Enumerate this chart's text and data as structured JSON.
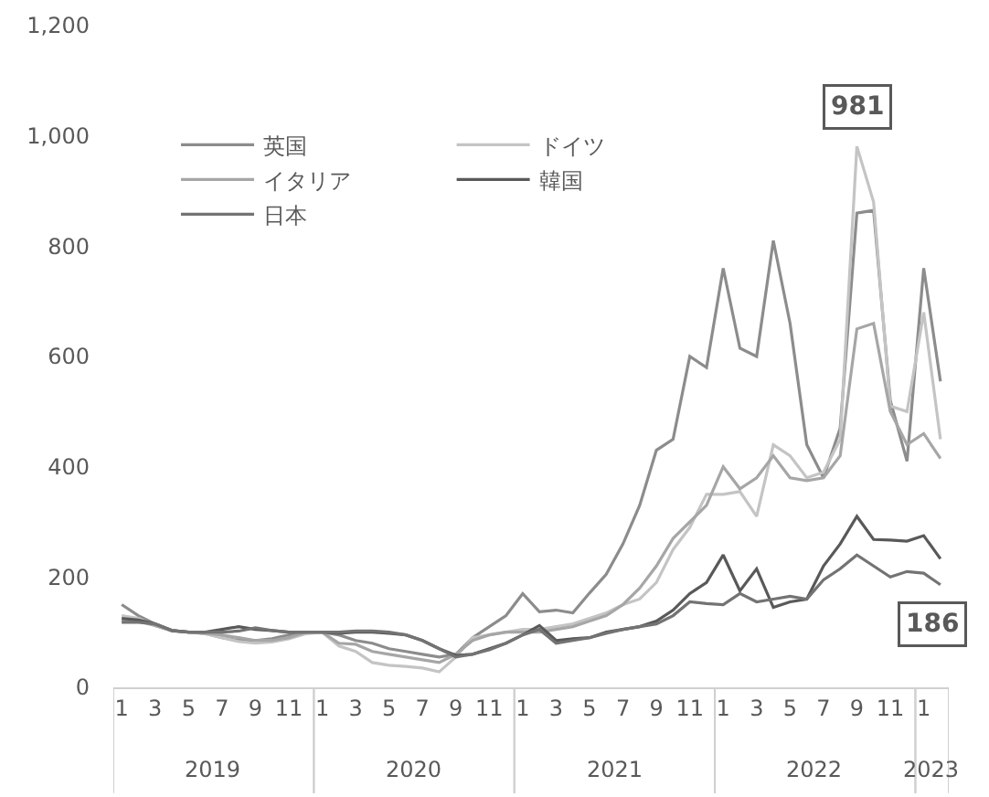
{
  "chart_data": {
    "type": "line",
    "categories": [
      "1",
      null,
      "3",
      null,
      "5",
      null,
      "7",
      null,
      "9",
      null,
      "11",
      null,
      "1",
      null,
      "3",
      null,
      "5",
      null,
      "7",
      null,
      "9",
      null,
      "11",
      null,
      "1",
      null,
      "3",
      null,
      "5",
      null,
      "7",
      null,
      "9",
      null,
      "11",
      null,
      "1",
      null,
      "3",
      null,
      "5",
      null,
      "7",
      null,
      "9",
      null,
      "11",
      null,
      "1",
      null
    ],
    "series": [
      {
        "name": "英国",
        "color": "#8c8c8c",
        "values": [
          150,
          130,
          115,
          103,
          100,
          98,
          90,
          85,
          85,
          88,
          95,
          100,
          100,
          95,
          85,
          80,
          70,
          65,
          60,
          55,
          60,
          90,
          110,
          130,
          170,
          137,
          140,
          135,
          171,
          205,
          260,
          330,
          430,
          450,
          600,
          580,
          760,
          615,
          600,
          810,
          660,
          440,
          380,
          470,
          860,
          865,
          520,
          410,
          760,
          555
        ]
      },
      {
        "name": "ドイツ",
        "color": "#c4c4c4",
        "values": [
          130,
          125,
          112,
          102,
          100,
          97,
          90,
          83,
          80,
          82,
          88,
          97,
          100,
          75,
          65,
          45,
          40,
          38,
          35,
          28,
          55,
          90,
          95,
          100,
          105,
          105,
          110,
          115,
          125,
          135,
          150,
          160,
          190,
          250,
          290,
          350,
          350,
          355,
          310,
          440,
          420,
          380,
          390,
          450,
          981,
          880,
          510,
          500,
          680,
          450
        ]
      },
      {
        "name": "イタリア",
        "color": "#a6a6a6",
        "values": [
          120,
          120,
          112,
          103,
          100,
          98,
          95,
          90,
          85,
          85,
          90,
          100,
          100,
          80,
          78,
          65,
          60,
          55,
          50,
          45,
          60,
          85,
          95,
          100,
          100,
          100,
          105,
          110,
          120,
          130,
          150,
          180,
          220,
          270,
          300,
          330,
          400,
          360,
          380,
          420,
          380,
          375,
          380,
          420,
          650,
          660,
          500,
          440,
          460,
          415
        ]
      },
      {
        "name": "韓国",
        "color": "#595959",
        "values": [
          125,
          122,
          115,
          103,
          100,
          100,
          105,
          110,
          105,
          103,
          100,
          100,
          100,
          98,
          100,
          100,
          98,
          95,
          85,
          70,
          58,
          60,
          70,
          80,
          95,
          112,
          85,
          88,
          90,
          100,
          105,
          110,
          120,
          140,
          170,
          190,
          240,
          175,
          215,
          145,
          155,
          160,
          220,
          260,
          310,
          268,
          267,
          265,
          275,
          233
        ]
      },
      {
        "name": "日本",
        "color": "#737373",
        "values": [
          118,
          118,
          115,
          103,
          100,
          100,
          100,
          102,
          108,
          103,
          100,
          100,
          100,
          100,
          102,
          102,
          100,
          95,
          85,
          70,
          55,
          60,
          68,
          80,
          95,
          105,
          80,
          85,
          90,
          98,
          105,
          110,
          115,
          130,
          155,
          152,
          150,
          170,
          155,
          160,
          165,
          160,
          195,
          215,
          240,
          220,
          200,
          210,
          207,
          186
        ]
      }
    ],
    "ylim": [
      0,
      1200
    ],
    "yticks": [
      0,
      200,
      400,
      600,
      800,
      {
        "value": 1000,
        "label": "1,000"
      },
      {
        "value": 1200,
        "label": "1,200"
      }
    ],
    "legend": "top left",
    "annotations": [
      "2019",
      "2020",
      "2021",
      "2022",
      "2023",
      {
        "text": "981",
        "y": 981
      },
      {
        "text": "186",
        "y": 186
      }
    ]
  }
}
